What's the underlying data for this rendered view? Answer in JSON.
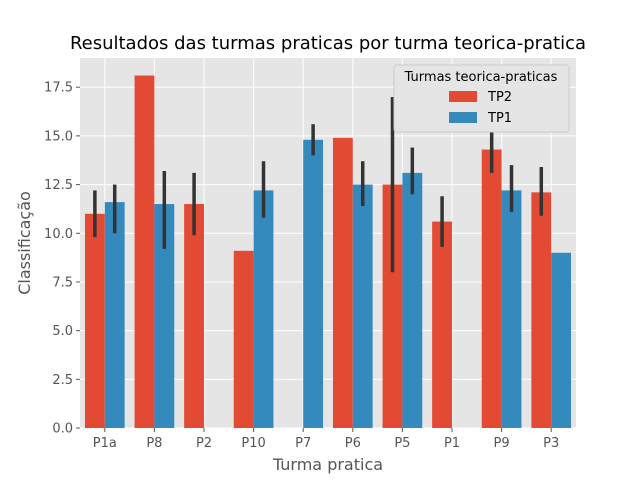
{
  "chart_data": {
    "type": "bar",
    "title": "Resultados das turmas praticas por turma teorica-pratica",
    "xlabel": "Turma pratica",
    "ylabel": "Classificação",
    "categories": [
      "P1a",
      "P8",
      "P2",
      "P10",
      "P7",
      "P6",
      "P5",
      "P1",
      "P9",
      "P3"
    ],
    "ylim": [
      0,
      19
    ],
    "yticks": [
      0.0,
      2.5,
      5.0,
      7.5,
      10.0,
      12.5,
      15.0,
      17.5
    ],
    "ytick_labels": [
      "0.0",
      "2.5",
      "5.0",
      "7.5",
      "10.0",
      "12.5",
      "15.0",
      "17.5"
    ],
    "grid": true,
    "legend": {
      "title": "Turmas teorica-praticas",
      "position": "top-right"
    },
    "series": [
      {
        "name": "TP2",
        "color": "#E24A33",
        "values": [
          11.0,
          18.1,
          11.5,
          9.1,
          null,
          14.9,
          12.5,
          10.6,
          14.3,
          12.1
        ],
        "error_low": [
          9.8,
          null,
          9.9,
          null,
          null,
          null,
          8.0,
          9.3,
          13.1,
          10.9
        ],
        "error_high": [
          12.2,
          null,
          13.1,
          null,
          null,
          null,
          17.0,
          11.9,
          15.4,
          13.4
        ]
      },
      {
        "name": "TP1",
        "color": "#348ABD",
        "values": [
          11.6,
          11.5,
          null,
          12.2,
          14.8,
          12.5,
          13.1,
          null,
          12.2,
          9.0
        ],
        "error_low": [
          10.0,
          9.2,
          null,
          10.8,
          14.0,
          11.4,
          12.0,
          null,
          11.1,
          null
        ],
        "error_high": [
          12.5,
          13.2,
          null,
          13.7,
          15.6,
          13.7,
          14.4,
          null,
          13.5,
          null
        ]
      }
    ]
  }
}
